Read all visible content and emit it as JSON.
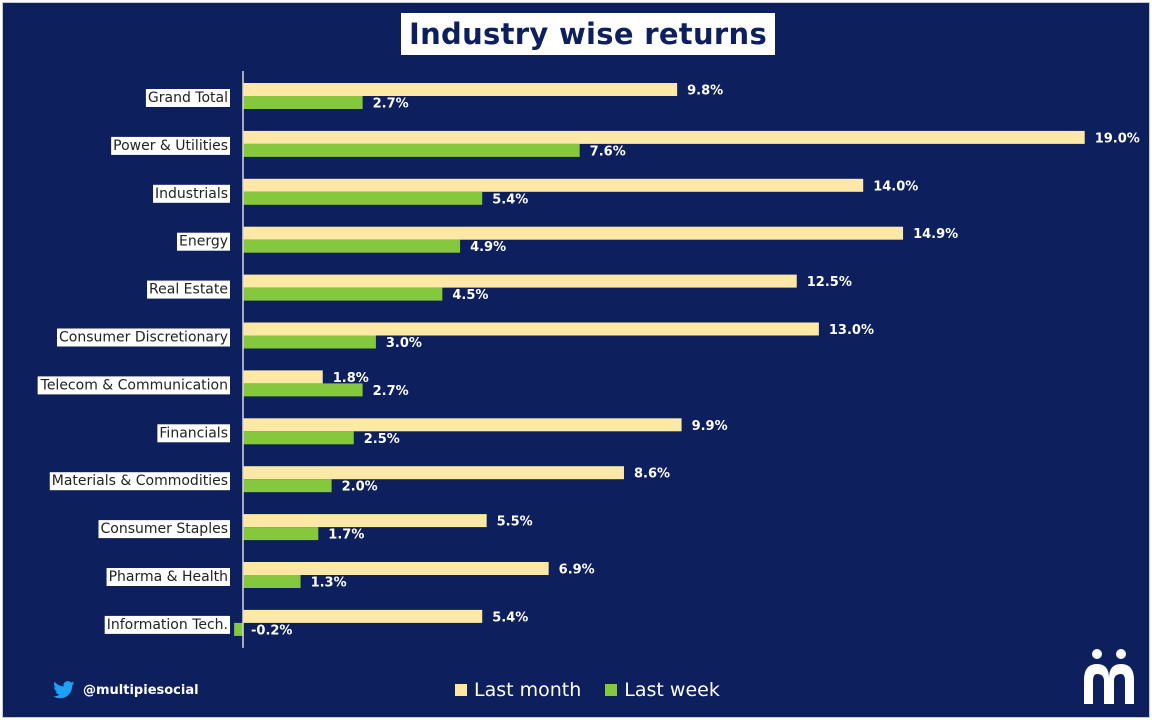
{
  "title": "Industry wise returns",
  "footer": {
    "handle": "@multipiesocial"
  },
  "colors": {
    "background": "#0d1f5c",
    "last_month": "#fde8a6",
    "last_week": "#86c83d",
    "text": "#ffffff"
  },
  "chart_data": {
    "type": "bar",
    "orientation": "horizontal",
    "title": "Industry wise returns",
    "categories": [
      "Grand Total",
      "Power & Utilities",
      "Industrials",
      "Energy",
      "Real Estate",
      "Consumer Discretionary",
      "Telecom & Communication",
      "Financials",
      "Materials & Commodities",
      "Consumer Staples",
      "Pharma & Health",
      "Information Tech."
    ],
    "series": [
      {
        "name": "Last month",
        "values": [
          9.8,
          19.0,
          14.0,
          14.9,
          12.5,
          13.0,
          1.8,
          9.9,
          8.6,
          5.5,
          6.9,
          5.4
        ],
        "labels": [
          "9.8%",
          "19.0%",
          "14.0%",
          "14.9%",
          "12.5%",
          "13.0%",
          "1.8%",
          "9.9%",
          "8.6%",
          "5.5%",
          "6.9%",
          "5.4%"
        ]
      },
      {
        "name": "Last week",
        "values": [
          2.7,
          7.6,
          5.4,
          4.9,
          4.5,
          3.0,
          2.7,
          2.5,
          2.0,
          1.7,
          1.3,
          -0.2
        ],
        "labels": [
          "2.7%",
          "7.6%",
          "5.4%",
          "4.9%",
          "4.5%",
          "3.0%",
          "2.7%",
          "2.5%",
          "2.0%",
          "1.7%",
          "1.3%",
          "-0.2%"
        ]
      }
    ],
    "legend": [
      "Last month",
      "Last week"
    ],
    "legend_position": "bottom",
    "xlim": [
      -0.2,
      19.0
    ],
    "unit": "%",
    "grid": false
  }
}
